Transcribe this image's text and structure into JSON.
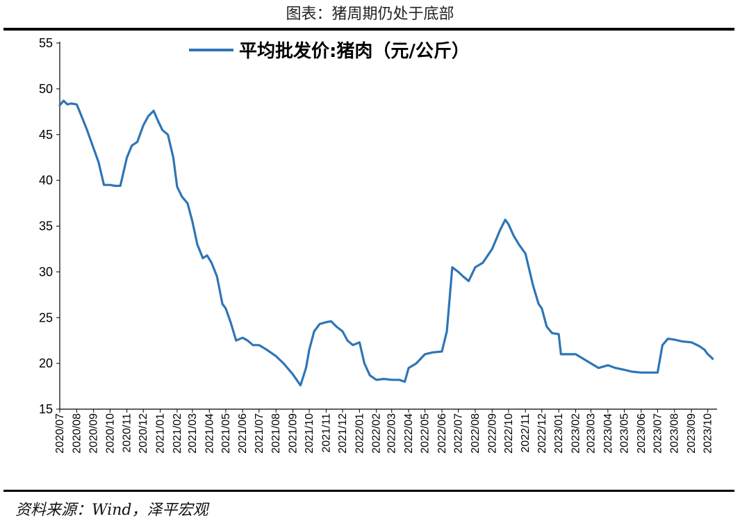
{
  "header": {
    "title": "图表：猪周期仍处于底部"
  },
  "footer": {
    "source": "资料来源：Wind，泽平宏观"
  },
  "colors": {
    "series": "#2E75B6",
    "axis": "#000000"
  },
  "chart_data": {
    "type": "line",
    "title": "图表：猪周期仍处于底部",
    "xlabel": "",
    "ylabel": "",
    "ylim": [
      15,
      55
    ],
    "yticks": [
      15,
      20,
      25,
      30,
      35,
      40,
      45,
      50,
      55
    ],
    "x_tick_labels": [
      "2020/07",
      "2020/08",
      "2020/09",
      "2020/10",
      "2020/11",
      "2020/12",
      "2021/01",
      "2021/02",
      "2021/03",
      "2021/04",
      "2021/05",
      "2021/06",
      "2021/07",
      "2021/08",
      "2021/09",
      "2021/10",
      "2021/11",
      "2021/12",
      "2022/01",
      "2022/02",
      "2022/03",
      "2022/04",
      "2022/05",
      "2022/06",
      "2022/07",
      "2022/08",
      "2022/09",
      "2022/10",
      "2022/11",
      "2022/12",
      "2023/01",
      "2023/02",
      "2023/03",
      "2023/04",
      "2023/05",
      "2023/06",
      "2023/07",
      "2023/08",
      "2023/09",
      "2023/10"
    ],
    "grid": false,
    "legend": "top",
    "series": [
      {
        "name": "平均批发价:猪肉（元/公斤）",
        "color": "#2E75B6",
        "x": [
          "2020/07/01",
          "2020/07/08",
          "2020/07/15",
          "2020/07/22",
          "2020/08/01",
          "2020/08/10",
          "2020/08/20",
          "2020/09/01",
          "2020/09/10",
          "2020/09/20",
          "2020/10/01",
          "2020/10/10",
          "2020/10/20",
          "2020/11/01",
          "2020/11/10",
          "2020/11/20",
          "2020/12/01",
          "2020/12/10",
          "2020/12/20",
          "2020/12/28",
          "2021/01/05",
          "2021/01/15",
          "2021/01/25",
          "2021/02/01",
          "2021/02/10",
          "2021/02/20",
          "2021/03/01",
          "2021/03/10",
          "2021/03/20",
          "2021/03/28",
          "2021/04/05",
          "2021/04/15",
          "2021/04/25",
          "2021/05/01",
          "2021/05/10",
          "2021/05/20",
          "2021/06/01",
          "2021/06/10",
          "2021/06/20",
          "2021/07/01",
          "2021/07/15",
          "2021/08/01",
          "2021/08/15",
          "2021/09/01",
          "2021/09/15",
          "2021/09/25",
          "2021/10/01",
          "2021/10/10",
          "2021/10/20",
          "2021/11/01",
          "2021/11/10",
          "2021/11/20",
          "2021/12/01",
          "2021/12/10",
          "2021/12/20",
          "2022/01/01",
          "2022/01/10",
          "2022/01/20",
          "2022/02/01",
          "2022/02/15",
          "2022/03/01",
          "2022/03/15",
          "2022/03/25",
          "2022/04/01",
          "2022/04/15",
          "2022/05/01",
          "2022/05/15",
          "2022/06/01",
          "2022/06/10",
          "2022/06/20",
          "2022/07/01",
          "2022/07/10",
          "2022/07/20",
          "2022/08/01",
          "2022/08/15",
          "2022/09/01",
          "2022/09/15",
          "2022/09/25",
          "2022/10/01",
          "2022/10/10",
          "2022/10/20",
          "2022/11/01",
          "2022/11/15",
          "2022/11/25",
          "2022/12/01",
          "2022/12/10",
          "2022/12/20",
          "2023/01/01",
          "2023/01/05",
          "2023/01/15",
          "2023/02/01",
          "2023/02/15",
          "2023/03/01",
          "2023/03/15",
          "2023/04/01",
          "2023/04/15",
          "2023/05/01",
          "2023/05/15",
          "2023/06/01",
          "2023/06/15",
          "2023/07/01",
          "2023/07/10",
          "2023/07/20",
          "2023/08/01",
          "2023/08/15",
          "2023/09/01",
          "2023/09/15",
          "2023/09/25",
          "2023/10/01",
          "2023/10/05",
          "2023/10/10"
        ],
        "values": [
          48.2,
          48.7,
          48.3,
          48.4,
          48.3,
          47.0,
          45.5,
          43.5,
          42.0,
          39.5,
          39.5,
          39.4,
          39.4,
          42.5,
          43.8,
          44.2,
          46.0,
          47.0,
          47.6,
          46.5,
          45.5,
          45.0,
          42.5,
          39.3,
          38.2,
          37.5,
          35.5,
          33.0,
          31.5,
          31.8,
          31.0,
          29.5,
          26.5,
          26.0,
          24.5,
          22.5,
          22.8,
          22.5,
          22.0,
          22.0,
          21.5,
          20.8,
          20.0,
          18.8,
          17.6,
          19.5,
          21.5,
          23.5,
          24.3,
          24.5,
          24.6,
          24.0,
          23.5,
          22.5,
          22.0,
          22.3,
          20.0,
          18.7,
          18.2,
          18.3,
          18.2,
          18.2,
          18.0,
          19.5,
          20.0,
          21.0,
          21.2,
          21.3,
          23.5,
          30.5,
          30.0,
          29.5,
          29.0,
          30.5,
          31.0,
          32.5,
          34.5,
          35.7,
          35.2,
          34.0,
          33.0,
          32.0,
          28.5,
          26.5,
          26.0,
          24.0,
          23.3,
          23.2,
          21.0,
          21.0,
          21.0,
          20.5,
          20.0,
          19.5,
          19.8,
          19.5,
          19.3,
          19.1,
          19.0,
          19.0,
          19.0,
          22.0,
          22.7,
          22.6,
          22.4,
          22.3,
          21.9,
          21.5,
          21.0,
          20.8,
          20.5
        ]
      }
    ]
  }
}
